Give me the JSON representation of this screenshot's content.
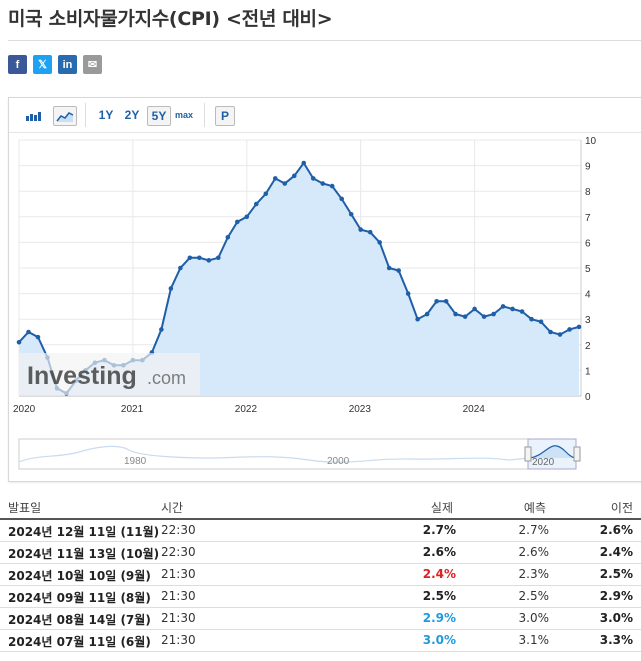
{
  "page": {
    "title": "미국 소비자물가지수(CPI) <전년 대비>"
  },
  "share": {
    "facebook": "f",
    "twitter": "𝕏",
    "linkedin": "in",
    "email": "✉"
  },
  "toolbar": {
    "ranges": [
      "1Y",
      "2Y",
      "5Y",
      "max"
    ],
    "active_range": "5Y",
    "p_label": "P"
  },
  "watermark": {
    "brand": "Investing",
    "suffix": ".com"
  },
  "navigator": {
    "labels": [
      "1980",
      "2000",
      "2020"
    ]
  },
  "chart_data": {
    "type": "area",
    "x_start": "2020-01",
    "x_tick_labels": [
      "2020",
      "2021",
      "2022",
      "2023",
      "2024"
    ],
    "y_ticks": [
      0,
      1,
      2,
      3,
      4,
      5,
      6,
      7,
      8,
      9,
      10
    ],
    "ylim": [
      0,
      10
    ],
    "y_axis_side": "right",
    "grid": true,
    "values": [
      2.5,
      2.3,
      1.5,
      0.3,
      0.1,
      0.6,
      1.0,
      1.3,
      1.4,
      1.2,
      1.2,
      1.4,
      1.4,
      1.7,
      2.6,
      4.2,
      5.0,
      5.4,
      5.4,
      5.3,
      5.4,
      6.2,
      6.8,
      7.0,
      7.5,
      7.9,
      8.5,
      8.3,
      8.6,
      9.1,
      8.5,
      8.3,
      8.2,
      7.7,
      7.1,
      6.5,
      6.4,
      6.0,
      5.0,
      4.9,
      4.0,
      3.0,
      3.2,
      3.7,
      3.7,
      3.2,
      3.1,
      3.4,
      3.1,
      3.2,
      3.5,
      3.4,
      3.3,
      3.0,
      2.9,
      2.5,
      2.4,
      2.6,
      2.7
    ],
    "first_value": 2.1,
    "colors": {
      "line": "#1f5fa8",
      "fill": "#d6e9fb"
    }
  },
  "table": {
    "headers": {
      "date": "발표일",
      "time": "시간",
      "actual": "실제",
      "forecast": "예측",
      "previous": "이전"
    },
    "rows": [
      {
        "date": "2024년 12월 11일 (11월)",
        "time": "22:30",
        "actual": "2.7%",
        "forecast": "2.7%",
        "previous": "2.6%",
        "actual_color": "#222222"
      },
      {
        "date": "2024년 11월 13일 (10월)",
        "time": "22:30",
        "actual": "2.6%",
        "forecast": "2.6%",
        "previous": "2.4%",
        "actual_color": "#222222"
      },
      {
        "date": "2024년 10월 10일 (9월)",
        "time": "21:30",
        "actual": "2.4%",
        "forecast": "2.3%",
        "previous": "2.5%",
        "actual_color": "#e02020"
      },
      {
        "date": "2024년 09월 11일 (8월)",
        "time": "21:30",
        "actual": "2.5%",
        "forecast": "2.5%",
        "previous": "2.9%",
        "actual_color": "#222222"
      },
      {
        "date": "2024년 08월 14일 (7월)",
        "time": "21:30",
        "actual": "2.9%",
        "forecast": "3.0%",
        "previous": "3.0%",
        "actual_color": "#1e9be0"
      },
      {
        "date": "2024년 07월 11일 (6월)",
        "time": "21:30",
        "actual": "3.0%",
        "forecast": "3.1%",
        "previous": "3.3%",
        "actual_color": "#1e9be0"
      }
    ]
  }
}
